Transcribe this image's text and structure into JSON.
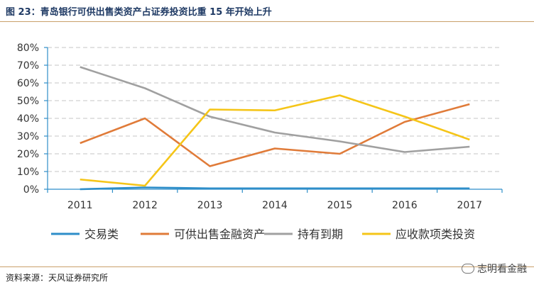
{
  "header": {
    "title": "图 23：青岛银行可供出售类资产占证券投资比重 15 年开始上升"
  },
  "footer": {
    "source": "资料来源：天风证券研究所",
    "watermark": "志明看金融"
  },
  "chart_data": {
    "type": "line",
    "title": "",
    "xlabel": "",
    "ylabel": "",
    "x": [
      "2011",
      "2012",
      "2013",
      "2014",
      "2015",
      "2016",
      "2017"
    ],
    "ylim": [
      0,
      80
    ],
    "yticks": [
      "0%",
      "10%",
      "20%",
      "30%",
      "40%",
      "50%",
      "60%",
      "70%",
      "80%"
    ],
    "grid": true,
    "legend_position": "bottom",
    "series": [
      {
        "name": "交易类",
        "color": "#2e8ec9",
        "values": [
          0,
          1,
          0.5,
          0.5,
          0.5,
          0.5,
          0.5
        ]
      },
      {
        "name": "可供出售金融资产",
        "color": "#e07b39",
        "values": [
          26,
          40,
          13,
          23,
          20,
          38,
          48
        ]
      },
      {
        "name": "持有到期",
        "color": "#a0a0a0",
        "values": [
          69,
          57,
          41,
          32,
          27,
          21,
          24
        ]
      },
      {
        "name": "应收款项类投资",
        "color": "#f5c518",
        "values": [
          5.5,
          2,
          45,
          44.5,
          53,
          41,
          28
        ]
      }
    ]
  }
}
